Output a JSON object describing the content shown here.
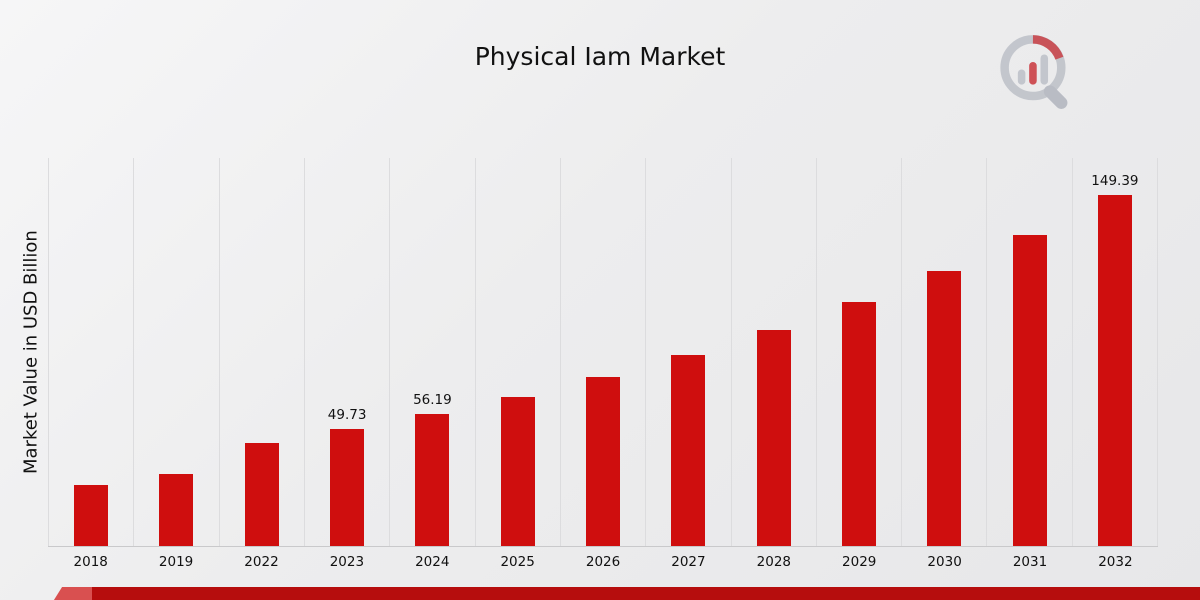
{
  "page": {
    "title": "Physical Iam Market"
  },
  "colors": {
    "bar": "#cf0e0e",
    "grid": "#dcdcde",
    "footer_dark": "#b60d0d",
    "footer_light": "#d95050",
    "logo_gray": "#b9bcc4",
    "logo_red": "#c9363c"
  },
  "chart_data": {
    "type": "bar",
    "title": "Physical Iam Market",
    "xlabel": "",
    "ylabel": "Market Value in USD Billion",
    "categories": [
      "2018",
      "2019",
      "2022",
      "2023",
      "2024",
      "2025",
      "2026",
      "2027",
      "2028",
      "2029",
      "2030",
      "2031",
      "2032"
    ],
    "values": [
      26.1,
      30.8,
      44.0,
      49.73,
      56.19,
      63.5,
      71.8,
      81.1,
      91.7,
      103.6,
      117.1,
      132.3,
      149.39
    ],
    "data_labels": [
      null,
      null,
      null,
      "49.73",
      "56.19",
      null,
      null,
      null,
      null,
      null,
      null,
      null,
      "149.39"
    ],
    "ylim": [
      0,
      165
    ],
    "grid": "vertical",
    "legend": "none",
    "bar_color": "#cf0e0e"
  }
}
